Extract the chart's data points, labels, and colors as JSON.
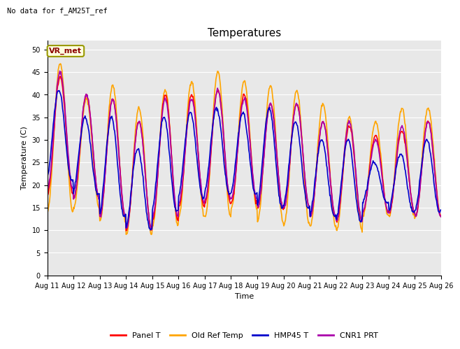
{
  "title": "Temperatures",
  "xlabel": "Time",
  "ylabel": "Temperature (C)",
  "top_left_text": "No data for f_AM25T_ref",
  "annotation_box": "VR_met",
  "ylim": [
    0,
    52
  ],
  "yticks": [
    0,
    5,
    10,
    15,
    20,
    25,
    30,
    35,
    40,
    45,
    50
  ],
  "x_labels": [
    "Aug 11",
    "Aug 12",
    "Aug 13",
    "Aug 14",
    "Aug 15",
    "Aug 16",
    "Aug 17",
    "Aug 18",
    "Aug 19",
    "Aug 20",
    "Aug 21",
    "Aug 22",
    "Aug 23",
    "Aug 24",
    "Aug 25",
    "Aug 26"
  ],
  "series": {
    "Panel T": {
      "color": "#FF0000",
      "lw": 1.2
    },
    "Old Ref Temp": {
      "color": "#FFA500",
      "lw": 1.2
    },
    "HMP45 T": {
      "color": "#0000CC",
      "lw": 1.2
    },
    "CNR1 PRT": {
      "color": "#AA00AA",
      "lw": 1.2
    }
  },
  "bg_color": "#E8E8E8",
  "grid_color": "#FFFFFF",
  "title_fontsize": 11,
  "label_fontsize": 8,
  "tick_fontsize": 7,
  "legend_fontsize": 8,
  "n_days": 15,
  "pts_per_day": 48,
  "day_peaks_orange": [
    47,
    39,
    42,
    37,
    41,
    43,
    45,
    43,
    42,
    41,
    38,
    35,
    34,
    37,
    37
  ],
  "day_mins_orange": [
    14,
    15,
    12,
    9,
    11,
    13,
    13,
    15,
    12,
    11,
    11,
    10,
    13,
    13,
    13
  ],
  "day_peaks_red": [
    44,
    40,
    39,
    34,
    40,
    40,
    41,
    40,
    38,
    38,
    34,
    33,
    31,
    32,
    34
  ],
  "day_mins_red": [
    18,
    17,
    13,
    10,
    12,
    15,
    16,
    16,
    15,
    15,
    13,
    12,
    14,
    14,
    13
  ],
  "day_peaks_blue": [
    41,
    35,
    35,
    28,
    35,
    36,
    37,
    36,
    37,
    34,
    30,
    30,
    25,
    27,
    30
  ],
  "day_mins_blue": [
    21,
    18,
    13,
    10,
    14,
    17,
    18,
    18,
    15,
    15,
    13,
    12,
    16,
    14,
    14
  ],
  "day_peaks_purple": [
    45,
    40,
    39,
    34,
    39,
    39,
    41,
    39,
    38,
    38,
    34,
    34,
    30,
    33,
    34
  ],
  "day_mins_purple": [
    19,
    17,
    13,
    10,
    13,
    16,
    17,
    17,
    15,
    15,
    13,
    12,
    14,
    14,
    13
  ],
  "phase_orange": 0.0,
  "phase_red": 0.0,
  "phase_blue": 0.05,
  "phase_purple": 0.0
}
